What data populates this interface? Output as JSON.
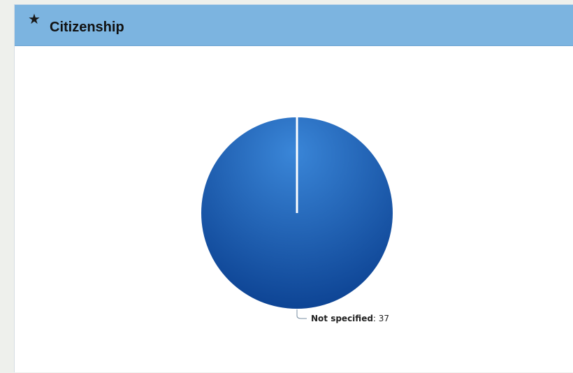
{
  "panel": {
    "title": "Citizenship",
    "icon": "star-icon"
  },
  "colors": {
    "header_bg": "#7cb4e0",
    "slice_light": "#3a86d8",
    "slice_dark": "#083c8c",
    "slice_stroke": "#ffffff"
  },
  "chart_data": {
    "type": "pie",
    "title": "",
    "slices": [
      {
        "name": "Not specified",
        "value": 37
      }
    ],
    "legend": "none",
    "data_labels": [
      "Not specified: 37"
    ]
  }
}
